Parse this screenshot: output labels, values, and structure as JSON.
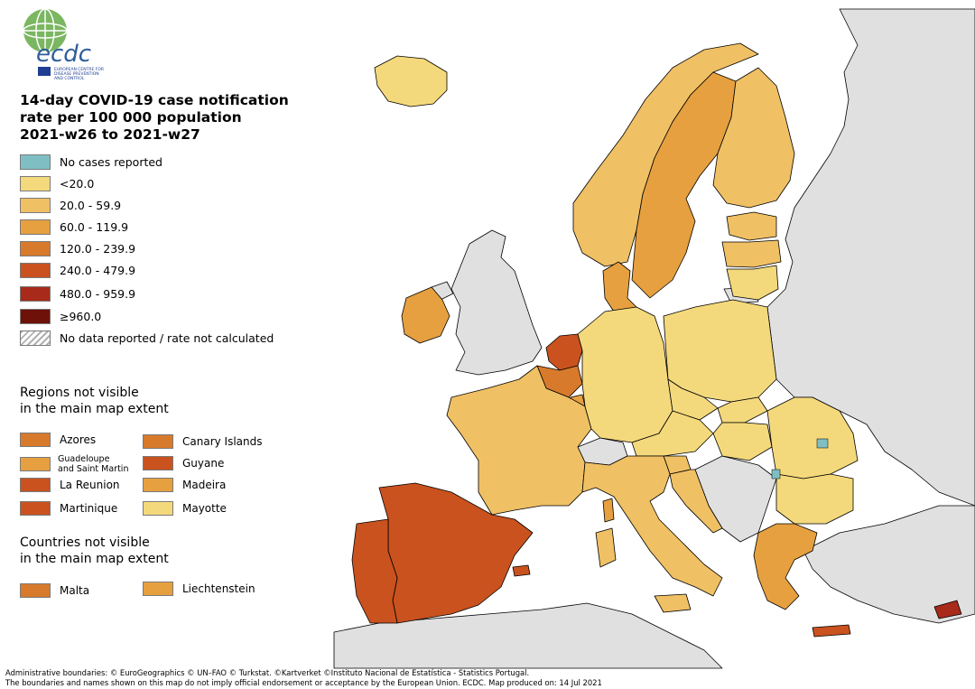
{
  "logo": {
    "wordmark": "ecdc",
    "org_lines": [
      "EUROPEAN CENTRE FOR",
      "DISEASE PREVENTION",
      "AND CONTROL"
    ],
    "icon": "ecdc-globe-logo"
  },
  "title": {
    "line1": "14-day COVID-19 case notification",
    "line2": "rate per 100 000 population",
    "line3": "2021-w26 to 2021-w27"
  },
  "legend": [
    {
      "label": "No cases reported",
      "color": "#7fbfc4"
    },
    {
      "label": "<20.0",
      "color": "#f4d97c"
    },
    {
      "label": "20.0 - 59.9",
      "color": "#f0c065"
    },
    {
      "label": "60.0 - 119.9",
      "color": "#e6a040"
    },
    {
      "label": "120.0 - 239.9",
      "color": "#d87a2b"
    },
    {
      "label": "240.0 - 479.9",
      "color": "#c9521f"
    },
    {
      "label": "480.0 - 959.9",
      "color": "#a82a1a"
    },
    {
      "label": "≥960.0",
      "color": "#6e1109"
    },
    {
      "label": "No data reported / rate not calculated",
      "color": "hatched"
    }
  ],
  "regions_heading": {
    "line1": "Regions not visible",
    "line2": "in the main map extent"
  },
  "regions": [
    {
      "label": "Azores",
      "color": "#d87a2b"
    },
    {
      "label": "Canary Islands",
      "color": "#d87a2b"
    },
    {
      "label": "Guadeloupe",
      "label2": "and Saint Martin",
      "color": "#e6a040"
    },
    {
      "label": "Guyane",
      "color": "#c9521f"
    },
    {
      "label": "La Reunion",
      "color": "#c9521f"
    },
    {
      "label": "Madeira",
      "color": "#e6a040"
    },
    {
      "label": "Martinique",
      "color": "#c9521f"
    },
    {
      "label": "Mayotte",
      "color": "#f4d97c"
    }
  ],
  "countries_heading": {
    "line1": "Countries not visible",
    "line2": "in the main map extent"
  },
  "countries": [
    {
      "label": "Malta",
      "color": "#d87a2b"
    },
    {
      "label": "Liechtenstein",
      "color": "#e6a040"
    }
  ],
  "footer": {
    "line1": "Administrative boundaries: © EuroGeographics © UN–FAO © Turkstat. ©Kartverket ©Instituto Nacional de Estatística - Statistics Portugal.",
    "line2": "The boundaries and names shown on this map do not imply official endorsement or acceptance by the European Union. ECDC. Map produced on: 14 Jul 2021"
  },
  "map_colors": {
    "non_eu": "#e0e0e0",
    "border": "#000000"
  },
  "map_regions": [
    {
      "name": "iceland",
      "color": "#f4d97c"
    },
    {
      "name": "norway",
      "color": "#f0c065"
    },
    {
      "name": "sweden",
      "color": "#e6a040"
    },
    {
      "name": "finland",
      "color": "#f0c065"
    },
    {
      "name": "estonia",
      "color": "#f0c065"
    },
    {
      "name": "latvia",
      "color": "#f0c065"
    },
    {
      "name": "lithuania",
      "color": "#f4d97c"
    },
    {
      "name": "ireland",
      "color": "#e6a040"
    },
    {
      "name": "denmark",
      "color": "#e6a040"
    },
    {
      "name": "netherlands",
      "color": "#c9521f"
    },
    {
      "name": "belgium",
      "color": "#d87a2b"
    },
    {
      "name": "luxembourg",
      "color": "#e6a040"
    },
    {
      "name": "france",
      "color": "#f0c065"
    },
    {
      "name": "spain",
      "color": "#c9521f"
    },
    {
      "name": "portugal",
      "color": "#c9521f"
    },
    {
      "name": "germany",
      "color": "#f4d97c"
    },
    {
      "name": "poland",
      "color": "#f4d97c"
    },
    {
      "name": "czechia",
      "color": "#f4d97c"
    },
    {
      "name": "slovakia",
      "color": "#f4d97c"
    },
    {
      "name": "austria",
      "color": "#f4d97c"
    },
    {
      "name": "hungary",
      "color": "#f4d97c"
    },
    {
      "name": "slovenia",
      "color": "#f0c065"
    },
    {
      "name": "croatia",
      "color": "#f0c065"
    },
    {
      "name": "italy",
      "color": "#f0c065"
    },
    {
      "name": "romania",
      "color": "#f4d97c"
    },
    {
      "name": "bulgaria",
      "color": "#f4d97c"
    },
    {
      "name": "greece",
      "color": "#e6a040"
    },
    {
      "name": "cyprus",
      "color": "#a82a1a"
    },
    {
      "name": "sardinia",
      "color": "#f0c065"
    },
    {
      "name": "sicily",
      "color": "#f0c065"
    },
    {
      "name": "corsica",
      "color": "#e6a040"
    },
    {
      "name": "crete",
      "color": "#c9521f"
    },
    {
      "name": "balearic-islands",
      "color": "#c9521f"
    }
  ]
}
